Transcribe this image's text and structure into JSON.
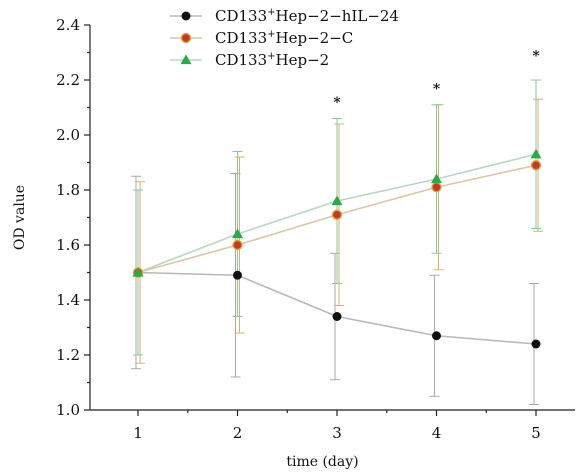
{
  "chart_data": {
    "type": "line",
    "xlabel": "time (day)",
    "ylabel": "OD value",
    "x": [
      1,
      2,
      3,
      4,
      5
    ],
    "xlim": [
      0.5,
      5.8
    ],
    "ylim": [
      1.0,
      2.4
    ],
    "x_ticks": [
      "1",
      "2",
      "3",
      "4",
      "5"
    ],
    "y_ticks": [
      "1.0",
      "1.2",
      "1.4",
      "1.6",
      "1.8",
      "2.0",
      "2.2",
      "2.4"
    ],
    "grid": false,
    "legend_position": "top-center",
    "series": [
      {
        "name": "CD133⁺Hep−2−hIL−24",
        "legend_main": "CD133",
        "legend_sup": "+",
        "legend_rest": "Hep−2−hIL−24",
        "marker": "circle",
        "color": "#111111",
        "line_color": "#b9b9b9",
        "errorbar_color": "#a9a9a9",
        "values": [
          1.5,
          1.49,
          1.34,
          1.27,
          1.24
        ],
        "error": [
          0.35,
          0.37,
          0.23,
          0.22,
          0.22
        ]
      },
      {
        "name": "CD133⁺Hep−2−C",
        "legend_main": "CD133",
        "legend_sup": "+",
        "legend_rest": "Hep−2−C",
        "marker": "circle",
        "color": "#c0392b",
        "edge_color": "#e0a23a",
        "line_color": "#d9c7a8",
        "errorbar_color": "#d8b26a",
        "values": [
          1.5,
          1.6,
          1.71,
          1.81,
          1.89
        ],
        "error": [
          0.33,
          0.32,
          0.33,
          0.3,
          0.24
        ]
      },
      {
        "name": "CD133⁺Hep−2",
        "legend_main": "CD133",
        "legend_sup": "+",
        "legend_rest": "Hep−2",
        "marker": "triangle",
        "color": "#2aa84a",
        "line_color": "#b8d8c0",
        "errorbar_color": "#8cc79d",
        "values": [
          1.5,
          1.64,
          1.76,
          1.84,
          1.93
        ],
        "error": [
          0.3,
          0.3,
          0.3,
          0.27,
          0.27
        ]
      }
    ],
    "annotations": [
      {
        "x": 3,
        "y": 2.12,
        "text": "*"
      },
      {
        "x": 4,
        "y": 2.17,
        "text": "*"
      },
      {
        "x": 5,
        "y": 2.29,
        "text": "*"
      }
    ]
  }
}
